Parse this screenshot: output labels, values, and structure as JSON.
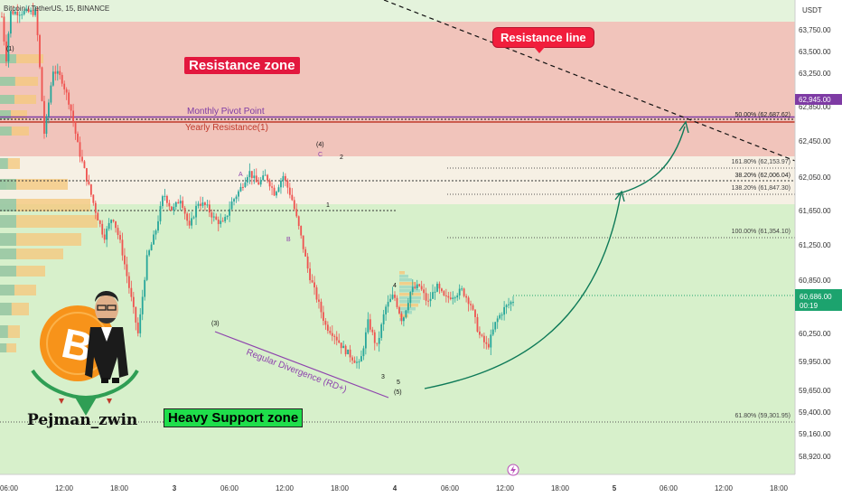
{
  "header": {
    "title": "Bitcoin / TetherUS, 15, BINANCE"
  },
  "axis": {
    "currency": "USDT",
    "y_ticks": [
      "63,750.00",
      "63,500.00",
      "63,250.00",
      "62,850.00",
      "62,450.00",
      "62,050.00",
      "61,650.00",
      "61,250.00",
      "60,850.00",
      "60,250.00",
      "59,950.00",
      "59,650.00",
      "59,400.00",
      "59,160.00",
      "58,920.00"
    ],
    "x_ticks": [
      "06:00",
      "12:00",
      "18:00",
      "3",
      "06:00",
      "12:00",
      "18:00",
      "4",
      "06:00",
      "12:00",
      "18:00",
      "5",
      "06:00",
      "12:00",
      "18:00"
    ],
    "badge_62945": "62,945.00",
    "current_price": "60,686.00",
    "countdown": "00:19"
  },
  "zones": {
    "resistance_zone": "Resistance zone",
    "support_zone": "Heavy Support zone",
    "resistance_line": "Resistance line"
  },
  "lines": {
    "monthly_pivot": "Monthly Pivot Point",
    "yearly_resistance": "Yearly Resistance(1)"
  },
  "fib": [
    {
      "label": "50.00% (62,687.62)"
    },
    {
      "label": "161.80% (62,153.97)"
    },
    {
      "label": "38.20% (62,006.04)"
    },
    {
      "label": "138.20% (61,847.30)"
    },
    {
      "label": "100.00% (61,354.10)"
    },
    {
      "label": "61.80% (59,301.95)"
    }
  ],
  "waves": {
    "w1_top": "(1)",
    "w3": "(3)",
    "w4": "(4)",
    "w5": "(5)",
    "a": "A",
    "b": "B",
    "c": "C",
    "n1": "1",
    "n2": "2",
    "n3": "3",
    "n4": "4",
    "n5": "5"
  },
  "divergence": "Regular Divergence (RD+)",
  "author": "Pejman_zwin",
  "colors": {
    "resistance": "#e3183e",
    "support": "#1fde4b",
    "pivot": "#8e44ad",
    "up": "#26a69a",
    "down": "#ef5350"
  },
  "chart_data": {
    "type": "candlestick",
    "symbol": "Bitcoin / TetherUS",
    "timeframe": "15",
    "exchange": "BINANCE",
    "ylim": [
      58800,
      63950
    ],
    "path": [
      [
        0,
        63900
      ],
      [
        0.5,
        63400
      ],
      [
        1,
        63950
      ],
      [
        4,
        63950
      ],
      [
        5,
        62550
      ],
      [
        6,
        63300
      ],
      [
        7,
        63200
      ],
      [
        8,
        62900
      ],
      [
        9,
        62400
      ],
      [
        10,
        62050
      ],
      [
        11,
        61700
      ],
      [
        12,
        61400
      ],
      [
        13,
        61650
      ],
      [
        14,
        61300
      ],
      [
        15,
        60800
      ],
      [
        16,
        60300
      ],
      [
        17,
        61150
      ],
      [
        18,
        61450
      ],
      [
        19,
        61900
      ],
      [
        20,
        61700
      ],
      [
        21,
        61850
      ],
      [
        22,
        61500
      ],
      [
        23,
        61800
      ],
      [
        24,
        61750
      ],
      [
        25,
        61600
      ],
      [
        26,
        61550
      ],
      [
        27,
        61800
      ],
      [
        28,
        61950
      ],
      [
        29,
        62150
      ],
      [
        30,
        62000
      ],
      [
        31,
        62100
      ],
      [
        32,
        61900
      ],
      [
        33,
        62100
      ],
      [
        34,
        61850
      ],
      [
        35,
        61450
      ],
      [
        36,
        61000
      ],
      [
        37,
        60700
      ],
      [
        38,
        60400
      ],
      [
        39,
        60300
      ],
      [
        40,
        60150
      ],
      [
        41,
        60050
      ],
      [
        42,
        59950
      ],
      [
        43,
        60450
      ],
      [
        44,
        60150
      ],
      [
        45,
        60600
      ],
      [
        46,
        60750
      ],
      [
        47,
        60450
      ],
      [
        48,
        60800
      ],
      [
        49,
        60850
      ],
      [
        50,
        60650
      ],
      [
        51,
        60850
      ],
      [
        52,
        60700
      ],
      [
        53,
        60750
      ],
      [
        54,
        60800
      ],
      [
        55,
        60650
      ],
      [
        56,
        60300
      ],
      [
        57,
        60150
      ],
      [
        58,
        60450
      ],
      [
        59,
        60600
      ],
      [
        60,
        60686
      ]
    ]
  }
}
